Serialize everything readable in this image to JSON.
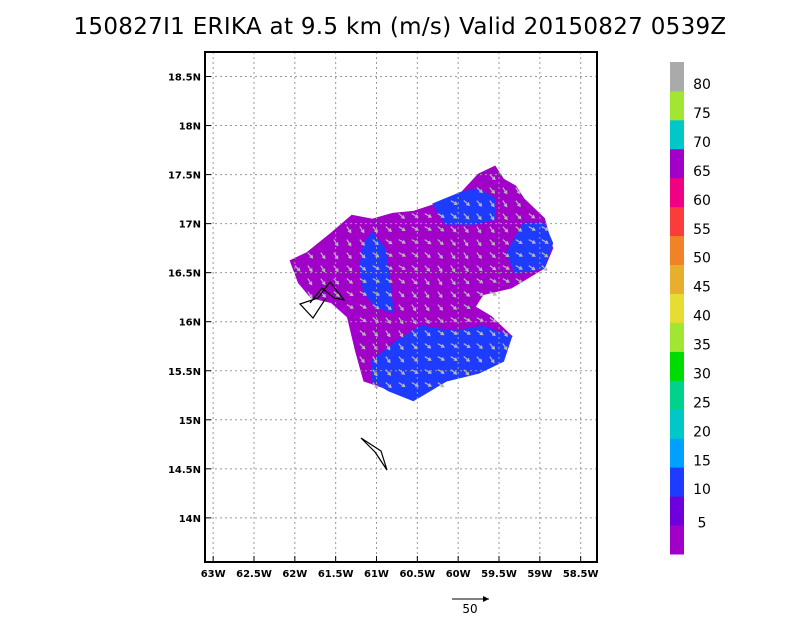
{
  "title": "150827I1 ERIKA at 9.5 km (m/s) Valid 20150827 0539Z",
  "chart_data": {
    "type": "heatmap",
    "title": "150827I1 ERIKA at 9.5 km (m/s) Valid 20150827 0539Z",
    "xlim": [
      -63.1,
      -58.3
    ],
    "ylim": [
      13.55,
      18.75
    ],
    "x_ticks": [
      {
        "value": -63,
        "label": "63W"
      },
      {
        "value": -62.5,
        "label": "62.5W"
      },
      {
        "value": -62,
        "label": "62W"
      },
      {
        "value": -61.5,
        "label": "61.5W"
      },
      {
        "value": -61,
        "label": "61W"
      },
      {
        "value": -60.5,
        "label": "60.5W"
      },
      {
        "value": -60,
        "label": "60W"
      },
      {
        "value": -59.5,
        "label": "59.5W"
      },
      {
        "value": -59,
        "label": "59W"
      },
      {
        "value": -58.5,
        "label": "58.5W"
      }
    ],
    "y_ticks": [
      {
        "value": 14,
        "label": "14N"
      },
      {
        "value": 14.5,
        "label": "14.5N"
      },
      {
        "value": 15,
        "label": "15N"
      },
      {
        "value": 15.5,
        "label": "15.5N"
      },
      {
        "value": 16,
        "label": "16N"
      },
      {
        "value": 16.5,
        "label": "16.5N"
      },
      {
        "value": 17,
        "label": "17N"
      },
      {
        "value": 17.5,
        "label": "17.5N"
      },
      {
        "value": 18,
        "label": "18N"
      },
      {
        "value": 18.5,
        "label": "18.5N"
      }
    ],
    "grid": true,
    "colorbar": {
      "labels": [
        "5",
        "10",
        "15",
        "20",
        "25",
        "30",
        "35",
        "40",
        "45",
        "50",
        "55",
        "60",
        "65",
        "70",
        "75",
        "80"
      ],
      "colors": [
        "#a000c8",
        "#6e00dc",
        "#1e3cff",
        "#00a0ff",
        "#00c8c8",
        "#00d28c",
        "#00dc00",
        "#a0e632",
        "#e6dc32",
        "#e6af2d",
        "#f08228",
        "#fa3c3c",
        "#f00082",
        "#a000c8",
        "#00c8c8",
        "#a0e632",
        "#aaaaaa"
      ]
    },
    "wind_regions": [
      {
        "name": "purple_5",
        "color": "#a000c8",
        "polygon": [
          [
            -62.05,
            16.62
          ],
          [
            -61.85,
            16.7
          ],
          [
            -61.55,
            16.9
          ],
          [
            -61.3,
            17.08
          ],
          [
            -61.05,
            17.04
          ],
          [
            -60.8,
            17.1
          ],
          [
            -60.55,
            17.12
          ],
          [
            -60.25,
            17.2
          ],
          [
            -59.95,
            17.32
          ],
          [
            -59.75,
            17.5
          ],
          [
            -59.55,
            17.58
          ],
          [
            -59.45,
            17.45
          ],
          [
            -59.3,
            17.38
          ],
          [
            -59.2,
            17.25
          ],
          [
            -58.95,
            17.05
          ],
          [
            -58.85,
            16.75
          ],
          [
            -58.95,
            16.55
          ],
          [
            -59.35,
            16.35
          ],
          [
            -59.7,
            16.28
          ],
          [
            -59.8,
            16.15
          ],
          [
            -59.6,
            16.05
          ],
          [
            -59.35,
            15.85
          ],
          [
            -59.65,
            15.6
          ],
          [
            -60.05,
            15.45
          ],
          [
            -60.45,
            15.25
          ],
          [
            -60.8,
            15.3
          ],
          [
            -61.15,
            15.4
          ],
          [
            -61.25,
            15.7
          ],
          [
            -61.35,
            16.05
          ],
          [
            -61.55,
            16.2
          ],
          [
            -61.8,
            16.25
          ],
          [
            -61.95,
            16.4
          ]
        ]
      },
      {
        "name": "blue_10_west",
        "color": "#1e3cff",
        "polygon": [
          [
            -61.05,
            16.9
          ],
          [
            -60.9,
            16.75
          ],
          [
            -60.85,
            16.45
          ],
          [
            -60.8,
            16.1
          ],
          [
            -61.0,
            16.15
          ],
          [
            -61.15,
            16.3
          ],
          [
            -61.2,
            16.55
          ],
          [
            -61.15,
            16.8
          ]
        ]
      },
      {
        "name": "blue_10_north",
        "color": "#1e3cff",
        "polygon": [
          [
            -60.3,
            17.2
          ],
          [
            -59.95,
            17.32
          ],
          [
            -59.75,
            17.35
          ],
          [
            -59.55,
            17.25
          ],
          [
            -59.55,
            17.05
          ],
          [
            -59.8,
            17.0
          ],
          [
            -60.15,
            17.0
          ]
        ]
      },
      {
        "name": "blue_10_east",
        "color": "#1e3cff",
        "polygon": [
          [
            -59.2,
            17.0
          ],
          [
            -58.95,
            17.0
          ],
          [
            -58.85,
            16.8
          ],
          [
            -58.95,
            16.55
          ],
          [
            -59.3,
            16.5
          ],
          [
            -59.4,
            16.7
          ]
        ]
      },
      {
        "name": "blue_10_south",
        "color": "#1e3cff",
        "polygon": [
          [
            -61.05,
            15.6
          ],
          [
            -60.75,
            15.8
          ],
          [
            -60.45,
            15.95
          ],
          [
            -60.05,
            15.9
          ],
          [
            -59.7,
            15.95
          ],
          [
            -59.35,
            15.85
          ],
          [
            -59.45,
            15.6
          ],
          [
            -59.75,
            15.48
          ],
          [
            -60.15,
            15.4
          ],
          [
            -60.55,
            15.2
          ],
          [
            -60.85,
            15.3
          ],
          [
            -61.05,
            15.4
          ]
        ]
      }
    ]
  },
  "legend_vector": {
    "label": "50"
  }
}
